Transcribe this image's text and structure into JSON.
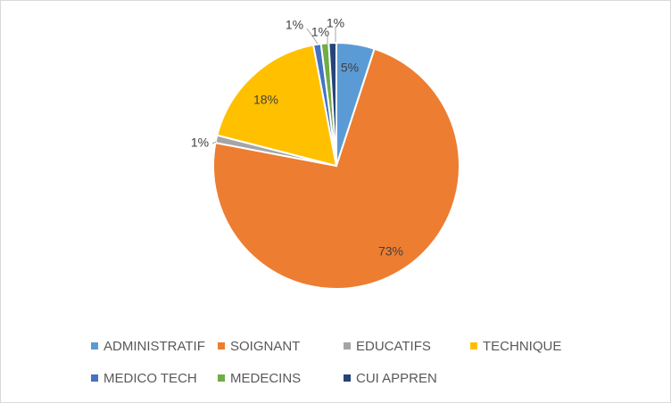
{
  "chart_data": {
    "type": "pie",
    "title": "",
    "categories": [
      "ADMINISTRATIF",
      "SOIGNANT",
      "EDUCATIFS",
      "TECHNIQUE",
      "MEDICO TECH",
      "MEDECINS",
      "CUI APPREN"
    ],
    "values": [
      5,
      73,
      1,
      18,
      1,
      1,
      1
    ],
    "labels": [
      "5%",
      "73%",
      "1%",
      "18%",
      "1%",
      "1%",
      "1%"
    ],
    "colors": [
      "#5B9BD5",
      "#ED7D31",
      "#A5A5A5",
      "#FFC000",
      "#4472C4",
      "#70AD47",
      "#264478"
    ],
    "legend_position": "bottom"
  },
  "legend": {
    "items": [
      {
        "label": "ADMINISTRATIF",
        "color": "#5B9BD5"
      },
      {
        "label": "SOIGNANT",
        "color": "#ED7D31"
      },
      {
        "label": "EDUCATIFS",
        "color": "#A5A5A5"
      },
      {
        "label": "TECHNIQUE",
        "color": "#FFC000"
      },
      {
        "label": "MEDICO TECH",
        "color": "#4472C4"
      },
      {
        "label": "MEDECINS",
        "color": "#70AD47"
      },
      {
        "label": "CUI APPREN",
        "color": "#264478"
      }
    ]
  }
}
